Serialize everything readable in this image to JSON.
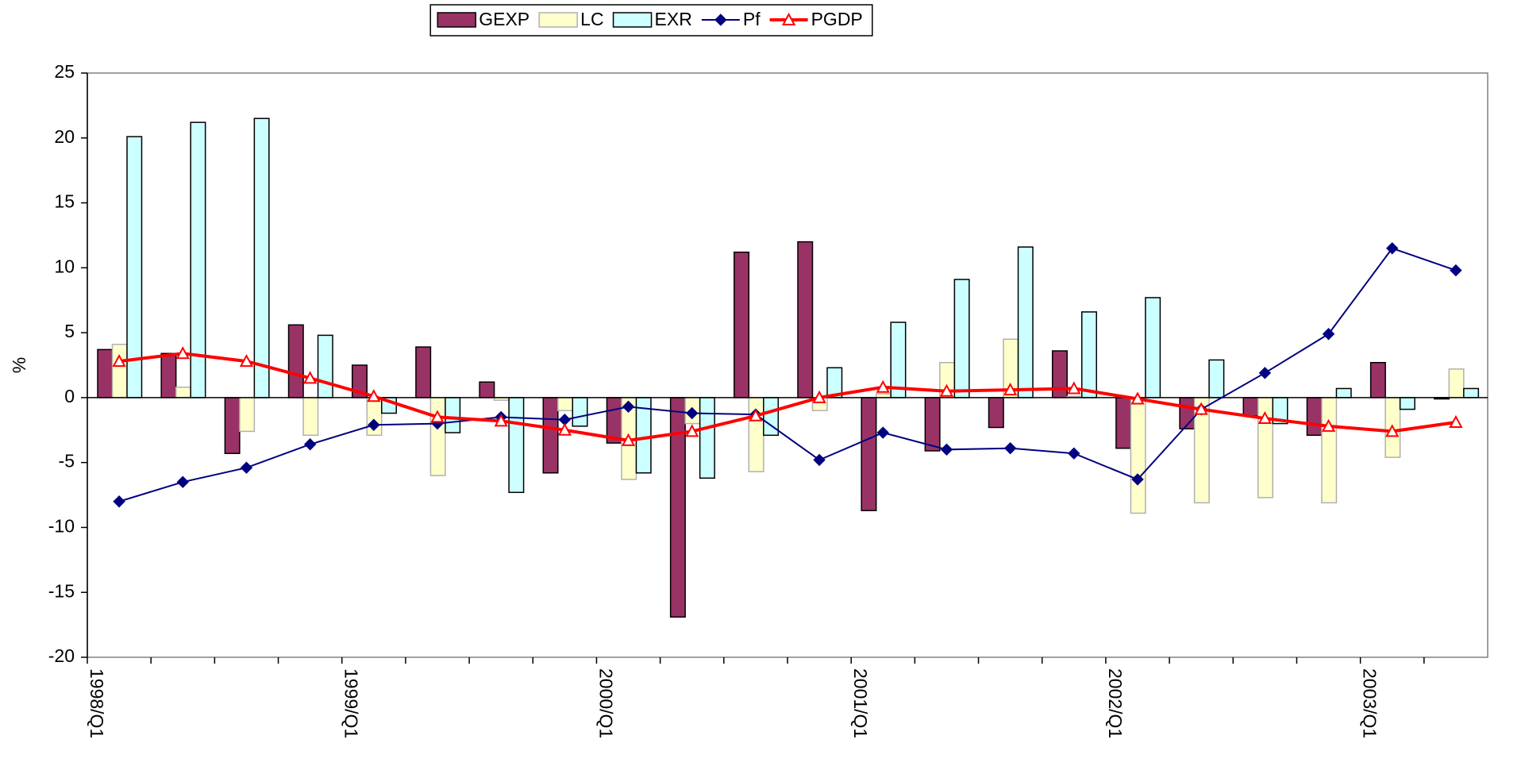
{
  "chart_data": {
    "type": "bar",
    "y_label": "%",
    "categories": [
      "1998/Q1",
      null,
      null,
      null,
      "1999/Q1",
      null,
      null,
      null,
      "2000/Q1",
      null,
      null,
      null,
      "2001/Q1",
      null,
      null,
      null,
      "2002/Q1",
      null,
      null,
      null,
      "2003/Q1",
      null
    ],
    "series": [
      {
        "name": "GEXP",
        "type": "bar",
        "color": "#993366",
        "stroke": "#000000",
        "values": [
          3.7,
          3.4,
          -4.3,
          5.6,
          2.5,
          3.9,
          1.2,
          -5.8,
          -3.5,
          -16.9,
          11.2,
          12.0,
          -8.7,
          -4.1,
          -2.3,
          3.6,
          -3.9,
          -2.4,
          -1.4,
          -2.9,
          2.7,
          -0.1
        ]
      },
      {
        "name": "LC",
        "type": "bar",
        "color": "#ffffcc",
        "stroke": "#b0b0b0",
        "values": [
          4.1,
          0.8,
          -2.6,
          -2.9,
          -2.9,
          -6.0,
          -0.2,
          -1.0,
          -6.3,
          -2.0,
          -5.7,
          -1.0,
          0.3,
          2.7,
          4.5,
          0.1,
          -8.9,
          -8.1,
          -7.7,
          -8.1,
          -4.6,
          2.2
        ]
      },
      {
        "name": "EXR",
        "type": "bar",
        "color": "#ccffff",
        "stroke": "#000000",
        "values": [
          20.1,
          21.2,
          21.5,
          4.8,
          -1.2,
          -2.7,
          -7.3,
          -2.2,
          -5.8,
          -6.2,
          -2.9,
          2.3,
          5.8,
          9.1,
          11.6,
          6.6,
          7.7,
          2.9,
          -2.0,
          0.7,
          -0.9,
          0.7
        ]
      },
      {
        "name": "Pf",
        "type": "line",
        "color": "#000080",
        "marker": "diamond",
        "values": [
          -8.0,
          -6.5,
          -5.4,
          -3.6,
          -2.1,
          -2.0,
          -1.5,
          -1.7,
          -0.7,
          -1.2,
          -1.3,
          -4.8,
          -2.7,
          -4.0,
          -3.9,
          -4.3,
          -6.3,
          -0.9,
          1.9,
          4.9,
          11.5,
          9.8
        ]
      },
      {
        "name": "PGDP",
        "type": "line",
        "color": "#ff0000",
        "marker": "triangle",
        "values": [
          2.8,
          3.4,
          2.8,
          1.5,
          0.1,
          -1.5,
          -1.8,
          -2.5,
          -3.3,
          -2.6,
          -1.4,
          0.0,
          0.8,
          0.5,
          0.6,
          0.7,
          -0.1,
          -0.9,
          -1.6,
          -2.2,
          -2.6,
          -1.9
        ]
      }
    ],
    "ylim": [
      -20,
      25
    ],
    "yticks": [
      -20,
      -15,
      -10,
      -5,
      0,
      5,
      10,
      15,
      20,
      25
    ],
    "legend": "top"
  }
}
